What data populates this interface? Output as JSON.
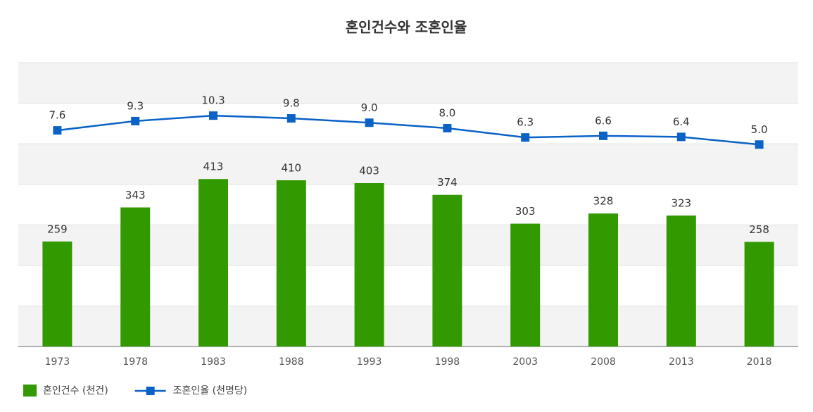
{
  "chart_data": {
    "type": "bar-line",
    "title": "혼인건수와 조혼인율",
    "categories": [
      "1973",
      "1978",
      "1983",
      "1988",
      "1993",
      "1998",
      "2003",
      "2008",
      "2013",
      "2018"
    ],
    "series": [
      {
        "name": "혼인건수 (천건)",
        "type": "bar",
        "color": "#339900",
        "values": [
          259,
          343,
          413,
          410,
          403,
          374,
          303,
          328,
          323,
          258
        ]
      },
      {
        "name": "조혼인율 (천명당)",
        "type": "line",
        "axis": "y2",
        "color": "#0a62c6",
        "values": [
          7.6,
          9.3,
          10.3,
          9.8,
          9.0,
          8.0,
          6.3,
          6.6,
          6.4,
          5.0
        ],
        "value_labels": [
          "7.6",
          "9.3",
          "10.3",
          "9.8",
          "9.0",
          "8.0",
          "6.3",
          "6.6",
          "6.4",
          "5.0"
        ]
      }
    ],
    "ylim": [
      0,
      700
    ],
    "yticks": [
      0,
      100,
      200,
      300,
      400,
      500,
      600,
      700
    ],
    "y2lim": [
      -32,
      20
    ],
    "grid": true
  }
}
